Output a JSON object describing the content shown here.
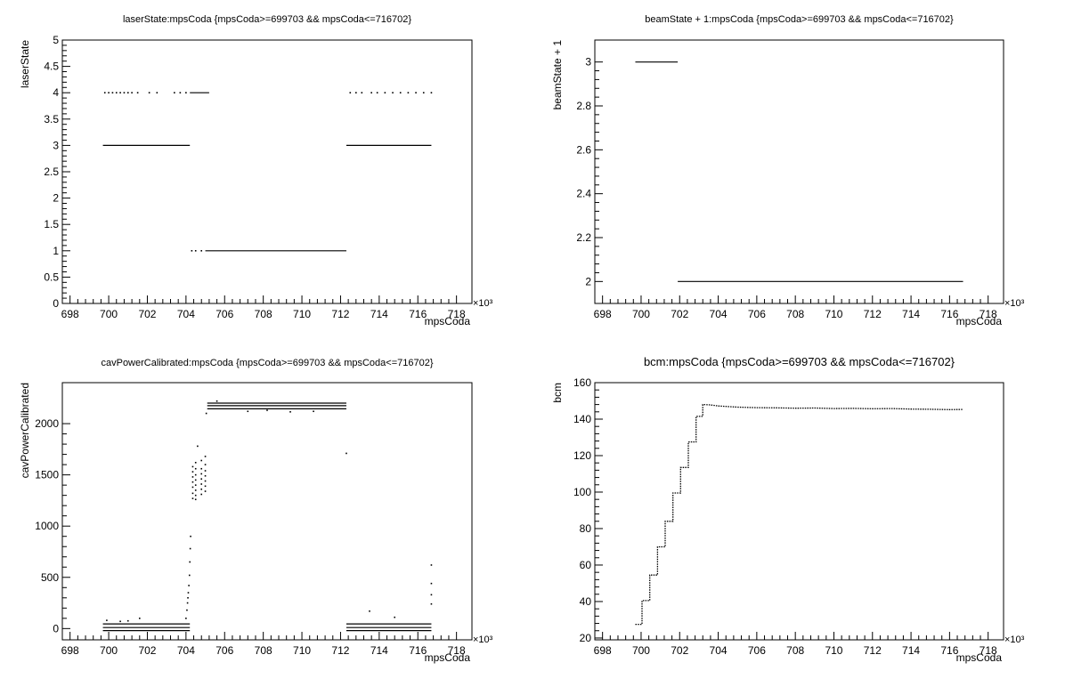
{
  "chart_data": [
    {
      "type": "scatter",
      "title": "laserState:mpsCoda {mpsCoda>=699703 && mpsCoda<=716702}",
      "xlabel": "mpsCoda",
      "ylabel": "laserState",
      "x_multiplier_label": "×10³",
      "xlim": [
        697.6,
        718.8
      ],
      "ylim": [
        0,
        5
      ],
      "xticks": [
        "698",
        "700",
        "702",
        "704",
        "706",
        "708",
        "710",
        "712",
        "714",
        "716",
        "718"
      ],
      "yticks": [
        "0",
        "0.5",
        "1",
        "1.5",
        "2",
        "2.5",
        "3",
        "3.5",
        "4",
        "4.5",
        "5"
      ],
      "grid": false,
      "segments": [
        {
          "x0": 699.7,
          "x1": 704.2,
          "y": 3
        },
        {
          "x0": 712.3,
          "x1": 716.7,
          "y": 3
        },
        {
          "x0": 705.0,
          "x1": 712.3,
          "y": 1
        },
        {
          "x0": 704.2,
          "x1": 705.2,
          "y": 4
        }
      ],
      "points": [
        {
          "x": 699.8,
          "y": 4
        },
        {
          "x": 700.0,
          "y": 4
        },
        {
          "x": 700.2,
          "y": 4
        },
        {
          "x": 700.4,
          "y": 4
        },
        {
          "x": 700.6,
          "y": 4
        },
        {
          "x": 700.8,
          "y": 4
        },
        {
          "x": 701.0,
          "y": 4
        },
        {
          "x": 701.2,
          "y": 4
        },
        {
          "x": 701.5,
          "y": 4
        },
        {
          "x": 702.1,
          "y": 4
        },
        {
          "x": 702.5,
          "y": 4
        },
        {
          "x": 703.4,
          "y": 4
        },
        {
          "x": 703.7,
          "y": 4
        },
        {
          "x": 704.0,
          "y": 4
        },
        {
          "x": 712.5,
          "y": 4
        },
        {
          "x": 712.8,
          "y": 4
        },
        {
          "x": 713.1,
          "y": 4
        },
        {
          "x": 713.6,
          "y": 4
        },
        {
          "x": 713.9,
          "y": 4
        },
        {
          "x": 714.3,
          "y": 4
        },
        {
          "x": 714.7,
          "y": 4
        },
        {
          "x": 715.1,
          "y": 4
        },
        {
          "x": 715.5,
          "y": 4
        },
        {
          "x": 715.9,
          "y": 4
        },
        {
          "x": 716.3,
          "y": 4
        },
        {
          "x": 716.7,
          "y": 4
        },
        {
          "x": 704.3,
          "y": 1
        },
        {
          "x": 704.5,
          "y": 1
        },
        {
          "x": 704.8,
          "y": 1
        }
      ]
    },
    {
      "type": "scatter",
      "title": "beamState + 1:mpsCoda {mpsCoda>=699703 && mpsCoda<=716702}",
      "xlabel": "mpsCoda",
      "ylabel": "beamState + 1",
      "x_multiplier_label": "×10³",
      "xlim": [
        697.6,
        718.8
      ],
      "ylim": [
        1.9,
        3.1
      ],
      "xticks": [
        "698",
        "700",
        "702",
        "704",
        "706",
        "708",
        "710",
        "712",
        "714",
        "716",
        "718"
      ],
      "yticks": [
        "2",
        "2.2",
        "2.4",
        "2.6",
        "2.8",
        "3"
      ],
      "ytick_values": [
        2,
        2.2,
        2.4,
        2.6,
        2.8,
        3
      ],
      "grid": false,
      "segments": [
        {
          "x0": 699.7,
          "x1": 701.9,
          "y": 3
        },
        {
          "x0": 701.9,
          "x1": 716.7,
          "y": 2
        }
      ],
      "points": []
    },
    {
      "type": "scatter",
      "title": "cavPowerCalibrated:mpsCoda {mpsCoda>=699703 && mpsCoda<=716702}",
      "xlabel": "mpsCoda",
      "ylabel": "cavPowerCalibrated",
      "x_multiplier_label": "×10³",
      "xlim": [
        697.6,
        718.8
      ],
      "ylim": [
        -110,
        2400
      ],
      "xticks": [
        "698",
        "700",
        "702",
        "704",
        "706",
        "708",
        "710",
        "712",
        "714",
        "716",
        "718"
      ],
      "yticks": [
        "0",
        "500",
        "1000",
        "1500",
        "2000"
      ],
      "ytick_values": [
        0,
        500,
        1000,
        1500,
        2000
      ],
      "grid": false,
      "segments": [
        {
          "x0": 699.7,
          "x1": 704.2,
          "y": 45
        },
        {
          "x0": 699.7,
          "x1": 704.2,
          "y": 10
        },
        {
          "x0": 699.7,
          "x1": 704.2,
          "y": -20
        },
        {
          "x0": 712.3,
          "x1": 716.7,
          "y": 45
        },
        {
          "x0": 712.3,
          "x1": 716.7,
          "y": 10
        },
        {
          "x0": 712.3,
          "x1": 716.7,
          "y": -20
        },
        {
          "x0": 705.1,
          "x1": 712.3,
          "y": 2200
        },
        {
          "x0": 705.1,
          "x1": 712.3,
          "y": 2175
        },
        {
          "x0": 705.1,
          "x1": 712.3,
          "y": 2145
        }
      ],
      "points": [
        {
          "x": 699.9,
          "y": 80
        },
        {
          "x": 700.6,
          "y": 70
        },
        {
          "x": 701.0,
          "y": 75
        },
        {
          "x": 701.6,
          "y": 100
        },
        {
          "x": 704.0,
          "y": 100
        },
        {
          "x": 704.05,
          "y": 180
        },
        {
          "x": 704.08,
          "y": 250
        },
        {
          "x": 704.1,
          "y": 300
        },
        {
          "x": 704.12,
          "y": 350
        },
        {
          "x": 704.15,
          "y": 420
        },
        {
          "x": 704.18,
          "y": 520
        },
        {
          "x": 704.2,
          "y": 650
        },
        {
          "x": 704.22,
          "y": 780
        },
        {
          "x": 704.24,
          "y": 900
        },
        {
          "x": 704.35,
          "y": 1270
        },
        {
          "x": 704.35,
          "y": 1320
        },
        {
          "x": 704.35,
          "y": 1380
        },
        {
          "x": 704.35,
          "y": 1430
        },
        {
          "x": 704.35,
          "y": 1480
        },
        {
          "x": 704.35,
          "y": 1530
        },
        {
          "x": 704.35,
          "y": 1580
        },
        {
          "x": 704.5,
          "y": 1260
        },
        {
          "x": 704.5,
          "y": 1300
        },
        {
          "x": 704.5,
          "y": 1350
        },
        {
          "x": 704.5,
          "y": 1400
        },
        {
          "x": 704.5,
          "y": 1450
        },
        {
          "x": 704.5,
          "y": 1500
        },
        {
          "x": 704.5,
          "y": 1560
        },
        {
          "x": 704.5,
          "y": 1620
        },
        {
          "x": 704.6,
          "y": 1780
        },
        {
          "x": 704.8,
          "y": 1310
        },
        {
          "x": 704.8,
          "y": 1360
        },
        {
          "x": 704.8,
          "y": 1410
        },
        {
          "x": 704.8,
          "y": 1460
        },
        {
          "x": 704.8,
          "y": 1510
        },
        {
          "x": 704.8,
          "y": 1560
        },
        {
          "x": 704.8,
          "y": 1640
        },
        {
          "x": 705.0,
          "y": 1340
        },
        {
          "x": 705.0,
          "y": 1390
        },
        {
          "x": 705.0,
          "y": 1440
        },
        {
          "x": 705.0,
          "y": 1490
        },
        {
          "x": 705.0,
          "y": 1540
        },
        {
          "x": 705.0,
          "y": 1600
        },
        {
          "x": 705.0,
          "y": 1680
        },
        {
          "x": 705.05,
          "y": 2100
        },
        {
          "x": 705.6,
          "y": 2220
        },
        {
          "x": 707.2,
          "y": 2120
        },
        {
          "x": 708.2,
          "y": 2130
        },
        {
          "x": 709.4,
          "y": 2115
        },
        {
          "x": 710.6,
          "y": 2120
        },
        {
          "x": 712.3,
          "y": 1710
        },
        {
          "x": 713.5,
          "y": 170
        },
        {
          "x": 714.8,
          "y": 110
        },
        {
          "x": 716.7,
          "y": 240
        },
        {
          "x": 716.7,
          "y": 330
        },
        {
          "x": 716.7,
          "y": 440
        },
        {
          "x": 716.7,
          "y": 620
        }
      ]
    },
    {
      "type": "line",
      "title": "bcm:mpsCoda {mpsCoda>=699703 && mpsCoda<=716702}",
      "xlabel": "mpsCoda",
      "ylabel": "bcm",
      "x_multiplier_label": "×10³",
      "xlim": [
        697.6,
        718.8
      ],
      "ylim": [
        19,
        160
      ],
      "xticks": [
        "698",
        "700",
        "702",
        "704",
        "706",
        "708",
        "710",
        "712",
        "714",
        "716",
        "718"
      ],
      "yticks": [
        "20",
        "40",
        "60",
        "80",
        "100",
        "120",
        "140",
        "160"
      ],
      "ytick_values": [
        20,
        40,
        60,
        80,
        100,
        120,
        140,
        160
      ],
      "grid": false,
      "x": [
        699.7,
        700.05,
        700.05,
        700.45,
        700.45,
        700.85,
        700.85,
        701.25,
        701.25,
        701.65,
        701.65,
        702.05,
        702.05,
        702.45,
        702.45,
        702.85,
        702.85,
        703.2,
        703.2,
        703.6,
        704.0,
        705.0,
        706.0,
        707.0,
        708.0,
        709.0,
        710.0,
        711.0,
        712.0,
        713.0,
        714.0,
        715.0,
        716.0,
        716.7
      ],
      "y": [
        27.5,
        27.5,
        40.5,
        40.5,
        54.5,
        54.5,
        70.0,
        70.0,
        84.0,
        84.0,
        99.5,
        99.5,
        113.5,
        113.5,
        127.5,
        127.5,
        141.5,
        141.5,
        148.0,
        147.8,
        147.2,
        146.6,
        146.3,
        146.2,
        146.0,
        146.1,
        145.8,
        145.9,
        145.7,
        145.8,
        145.5,
        145.4,
        145.2,
        145.3
      ]
    }
  ]
}
